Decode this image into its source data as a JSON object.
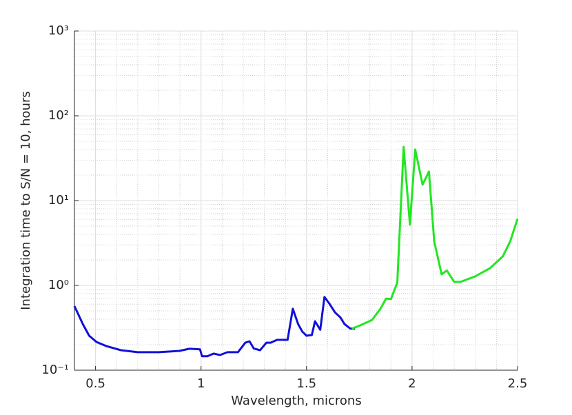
{
  "chart_data": {
    "type": "line",
    "xlabel": "Wavelength, microns",
    "ylabel": "Integration time to S/N = 10, hours",
    "xlim": [
      0.4,
      2.5
    ],
    "xticks": [
      0.5,
      1,
      1.5,
      2,
      2.5
    ],
    "ylim": [
      0.1,
      1000
    ],
    "yscale": "log",
    "yticks": [
      {
        "value": 0.1,
        "label": "10⁻¹"
      },
      {
        "value": 1,
        "label": "10⁰"
      },
      {
        "value": 10,
        "label": "10¹"
      },
      {
        "value": 100,
        "label": "10²"
      },
      {
        "value": 1000,
        "label": "10³"
      }
    ],
    "grid": true,
    "series": [
      {
        "color": "#1010d8",
        "x": [
          0.4,
          0.44,
          0.47,
          0.505,
          0.55,
          0.62,
          0.7,
          0.8,
          0.897,
          0.945,
          0.995,
          1.005,
          1.03,
          1.06,
          1.09,
          1.125,
          1.175,
          1.21,
          1.23,
          1.25,
          1.28,
          1.31,
          1.33,
          1.36,
          1.41,
          1.435,
          1.46,
          1.48,
          1.5,
          1.525,
          1.54,
          1.565,
          1.585,
          1.61,
          1.635,
          1.66,
          1.68,
          1.707,
          1.73
        ],
        "values": [
          0.57,
          0.35,
          0.255,
          0.215,
          0.193,
          0.172,
          0.163,
          0.163,
          0.169,
          0.179,
          0.176,
          0.146,
          0.146,
          0.157,
          0.151,
          0.163,
          0.163,
          0.211,
          0.219,
          0.18,
          0.172,
          0.211,
          0.211,
          0.228,
          0.228,
          0.53,
          0.35,
          0.285,
          0.255,
          0.26,
          0.378,
          0.3,
          0.73,
          0.6,
          0.48,
          0.42,
          0.35,
          0.31,
          0.31
        ]
      },
      {
        "color": "#22e622",
        "x": [
          1.715,
          1.745,
          1.81,
          1.85,
          1.877,
          1.9,
          1.93,
          1.96,
          1.99,
          2.015,
          2.05,
          2.08,
          2.105,
          2.14,
          2.165,
          2.2,
          2.23,
          2.3,
          2.37,
          2.43,
          2.465,
          2.5
        ],
        "values": [
          0.31,
          0.33,
          0.39,
          0.53,
          0.7,
          0.69,
          1.08,
          43,
          5.2,
          40,
          15.4,
          22,
          3.3,
          1.35,
          1.5,
          1.1,
          1.1,
          1.28,
          1.6,
          2.2,
          3.3,
          6.1
        ]
      }
    ]
  }
}
